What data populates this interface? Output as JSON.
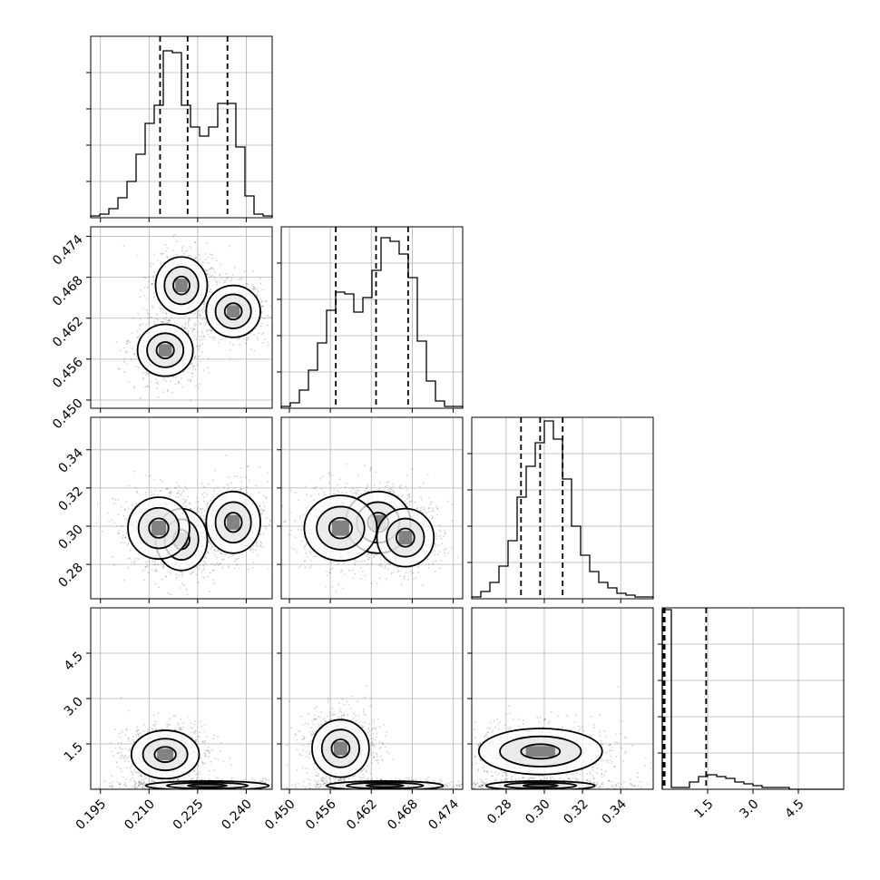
{
  "chart_data": {
    "type": "corner",
    "parameters": [
      {
        "ticks": [
          0.195,
          0.21,
          0.225,
          0.24
        ],
        "tick_labels": [
          "0.195",
          "0.210",
          "0.225",
          "0.240"
        ],
        "range": [
          0.192,
          0.248
        ],
        "quantiles": [
          0.2134,
          0.2219,
          0.2342
        ]
      },
      {
        "ticks": [
          0.45,
          0.456,
          0.462,
          0.468,
          0.474
        ],
        "tick_labels": [
          "0.450",
          "0.456",
          "0.462",
          "0.468",
          "0.474"
        ],
        "range": [
          0.4488,
          0.4754
        ],
        "quantiles": [
          0.4568,
          0.4627,
          0.4674
        ]
      },
      {
        "ticks": [
          0.28,
          0.3,
          0.32,
          0.34
        ],
        "tick_labels": [
          "0.28",
          "0.30",
          "0.32",
          "0.34"
        ],
        "range": [
          0.262,
          0.357
        ],
        "quantiles": [
          0.2878,
          0.2978,
          0.3096
        ]
      },
      {
        "ticks": [
          1.5,
          3.0,
          4.5
        ],
        "tick_labels": [
          "1.5",
          "3.0",
          "4.5"
        ],
        "range": [
          0.0,
          6.0
        ],
        "quantiles": [
          0.03,
          0.08,
          1.45
        ]
      }
    ],
    "histograms": [
      {
        "bins": 20,
        "counts": [
          0.01,
          0.02,
          0.05,
          0.11,
          0.2,
          0.35,
          0.52,
          0.62,
          0.92,
          0.91,
          0.62,
          0.5,
          0.45,
          0.5,
          0.63,
          0.63,
          0.39,
          0.12,
          0.02,
          0.01
        ]
      },
      {
        "bins": 20,
        "counts": [
          0.01,
          0.03,
          0.1,
          0.21,
          0.36,
          0.54,
          0.64,
          0.63,
          0.53,
          0.61,
          0.76,
          0.94,
          0.92,
          0.85,
          0.72,
          0.37,
          0.15,
          0.04,
          0.01,
          0.01
        ]
      },
      {
        "bins": 20,
        "counts": [
          0.01,
          0.04,
          0.09,
          0.18,
          0.32,
          0.56,
          0.73,
          0.86,
          0.98,
          0.88,
          0.66,
          0.4,
          0.24,
          0.15,
          0.09,
          0.06,
          0.03,
          0.02,
          0.01,
          0.01
        ]
      },
      {
        "bins": 20,
        "counts": [
          0.99,
          0.01,
          0.01,
          0.04,
          0.07,
          0.08,
          0.07,
          0.06,
          0.04,
          0.03,
          0.02,
          0.01,
          0.01,
          0.01,
          0.0,
          0.0,
          0.0,
          0.0,
          0.0,
          0.0
        ]
      }
    ],
    "modes": {
      "p0p1": [
        {
          "x": 0.22,
          "y": 0.4668,
          "sx": 0.0042,
          "sy": 0.0022
        },
        {
          "x": 0.236,
          "y": 0.463,
          "sx": 0.0044,
          "sy": 0.002
        },
        {
          "x": 0.215,
          "y": 0.4573,
          "sx": 0.0045,
          "sy": 0.002
        }
      ],
      "p0p2": [
        {
          "x": 0.22,
          "y": 0.293,
          "sx": 0.0042,
          "sy": 0.0085
        },
        {
          "x": 0.236,
          "y": 0.302,
          "sx": 0.0044,
          "sy": 0.0085
        },
        {
          "x": 0.213,
          "y": 0.299,
          "sx": 0.005,
          "sy": 0.0085
        }
      ],
      "p1p2": [
        {
          "x": 0.463,
          "y": 0.302,
          "sx": 0.0025,
          "sy": 0.0085
        },
        {
          "x": 0.467,
          "y": 0.294,
          "sx": 0.0022,
          "sy": 0.008
        },
        {
          "x": 0.4575,
          "y": 0.299,
          "sx": 0.0028,
          "sy": 0.009
        }
      ],
      "p0p3": [
        {
          "x": 0.215,
          "y": 1.15,
          "sx": 0.0055,
          "sy": 0.42
        },
        {
          "x": 0.228,
          "y": 0.12,
          "sx": 0.01,
          "sy": 0.08
        }
      ],
      "p1p3": [
        {
          "x": 0.4575,
          "y": 1.35,
          "sx": 0.0022,
          "sy": 0.5
        },
        {
          "x": 0.464,
          "y": 0.12,
          "sx": 0.0045,
          "sy": 0.08
        }
      ],
      "p2p3": [
        {
          "x": 0.298,
          "y": 1.25,
          "sx": 0.017,
          "sy": 0.4
        },
        {
          "x": 0.298,
          "y": 0.12,
          "sx": 0.015,
          "sy": 0.08
        }
      ]
    },
    "contour_levels": 3,
    "grid": true,
    "histogram_style": "step",
    "quantile_line_style": "dashed"
  }
}
